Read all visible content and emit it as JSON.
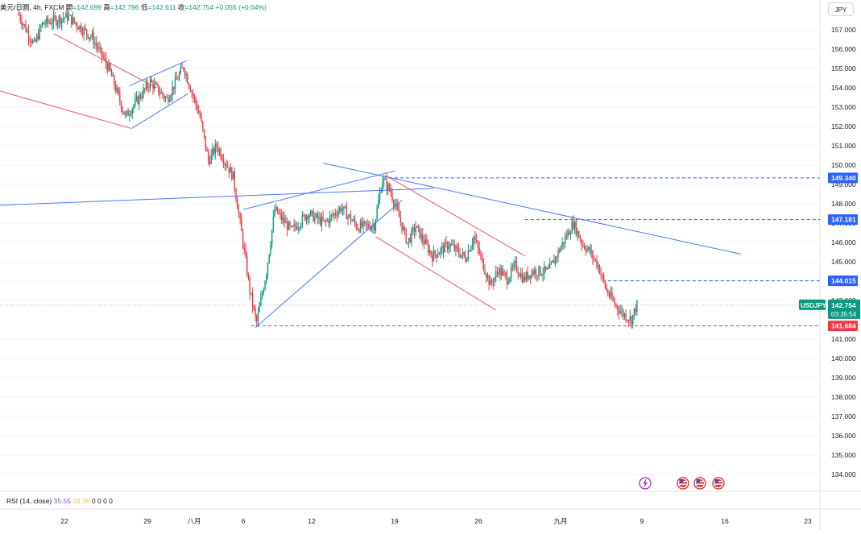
{
  "header": {
    "symbol": "美元/日圆",
    "interval": "4h",
    "source": "FXCM",
    "open_label": "開",
    "open": "=142.699",
    "high_label": "高",
    "high": "=142.796",
    "low_label": "低",
    "low": "=142.611",
    "close_label": "收",
    "close": "=142.754",
    "change": "+0.055 (+0.04%)"
  },
  "currency_button": "JPY",
  "rsi": {
    "label": "RSI (14, close)",
    "value1": "35.55",
    "value2": "29.36",
    "zeros": "0 0 0 0"
  },
  "colors": {
    "up": "#089981",
    "down": "#f23645",
    "trend_blue": "#2962ff",
    "trend_red": "#f23645",
    "current_price_bg": "#089981",
    "level_bg": "#2962ff",
    "low_bg": "#f23645",
    "event_icon": "#d93a47",
    "lightning_icon": "#9c27b0"
  },
  "icons": [
    "lightning-icon",
    "us-flag-icon",
    "us-flag-icon",
    "us-flag-icon"
  ],
  "chart_data": {
    "type": "candlestick",
    "y_ticks": [
      "157.000",
      "156.000",
      "155.000",
      "154.000",
      "153.000",
      "152.000",
      "151.000",
      "150.000",
      "149.000",
      "148.000",
      "147.000",
      "146.000",
      "145.000",
      "144.000",
      "143.000",
      "141.000",
      "140.000",
      "139.000",
      "138.000",
      "137.000",
      "136.000",
      "135.000",
      "134.000"
    ],
    "x_ticks": [
      "22",
      "29",
      "八月",
      "6",
      "12",
      "19",
      "26",
      "九月",
      "9",
      "16",
      "23"
    ],
    "ylim": [
      133.9,
      158.1
    ],
    "price_labels": {
      "levels": [
        "149.340",
        "147.181",
        "144.015"
      ],
      "low": "141.684",
      "current": {
        "symbol": "USDJPY",
        "price": "142.754",
        "countdown": "03:35:54"
      }
    },
    "anchors": [
      {
        "d": 0,
        "p": 157.9
      },
      {
        "d": 2,
        "p": 156.2
      },
      {
        "d": 3,
        "p": 157.3
      },
      {
        "d": 6,
        "p": 157.7
      },
      {
        "d": 9,
        "p": 156.6
      },
      {
        "d": 11,
        "p": 155.0
      },
      {
        "d": 13,
        "p": 152.5
      },
      {
        "d": 16,
        "p": 154.3
      },
      {
        "d": 18,
        "p": 153.4
      },
      {
        "d": 20,
        "p": 155.1
      },
      {
        "d": 22,
        "p": 152.5
      },
      {
        "d": 23,
        "p": 150.2
      },
      {
        "d": 24,
        "p": 151.0
      },
      {
        "d": 26,
        "p": 149.4
      },
      {
        "d": 27,
        "p": 146.5
      },
      {
        "d": 28,
        "p": 143.5
      },
      {
        "d": 28.8,
        "p": 141.8
      },
      {
        "d": 30,
        "p": 144.5
      },
      {
        "d": 31,
        "p": 147.7
      },
      {
        "d": 33,
        "p": 146.6
      },
      {
        "d": 35,
        "p": 147.5
      },
      {
        "d": 37,
        "p": 147.0
      },
      {
        "d": 39,
        "p": 147.8
      },
      {
        "d": 41,
        "p": 146.8
      },
      {
        "d": 43,
        "p": 146.9
      },
      {
        "d": 44,
        "p": 149.3
      },
      {
        "d": 45,
        "p": 148.6
      },
      {
        "d": 46,
        "p": 147.3
      },
      {
        "d": 47,
        "p": 146.0
      },
      {
        "d": 48,
        "p": 146.8
      },
      {
        "d": 50,
        "p": 145.3
      },
      {
        "d": 52,
        "p": 145.9
      },
      {
        "d": 54,
        "p": 145.2
      },
      {
        "d": 55,
        "p": 146.3
      },
      {
        "d": 56,
        "p": 145.0
      },
      {
        "d": 57,
        "p": 143.8
      },
      {
        "d": 58,
        "p": 144.6
      },
      {
        "d": 59,
        "p": 144.1
      },
      {
        "d": 60,
        "p": 144.8
      },
      {
        "d": 61,
        "p": 144.1
      },
      {
        "d": 62,
        "p": 144.5
      },
      {
        "d": 64,
        "p": 144.5
      },
      {
        "d": 66,
        "p": 146.2
      },
      {
        "d": 67,
        "p": 147.0
      },
      {
        "d": 68,
        "p": 146.0
      },
      {
        "d": 69,
        "p": 145.5
      },
      {
        "d": 70,
        "p": 144.8
      },
      {
        "d": 71,
        "p": 143.5
      },
      {
        "d": 72,
        "p": 142.8
      },
      {
        "d": 73,
        "p": 142.3
      },
      {
        "d": 74,
        "p": 142.0
      },
      {
        "d": 74.6,
        "p": 142.75
      }
    ],
    "trendlines": [
      {
        "color": "red",
        "from": [
          -20,
          156.0
        ],
        "to": [
          13.5,
          151.9
        ]
      },
      {
        "color": "red",
        "from": [
          4.2,
          156.8
        ],
        "to": [
          16.6,
          154.0
        ]
      },
      {
        "color": "blue",
        "from": [
          13.3,
          154.1
        ],
        "to": [
          20.2,
          155.4
        ]
      },
      {
        "color": "blue",
        "from": [
          13.6,
          151.9
        ],
        "to": [
          20.4,
          153.7
        ]
      },
      {
        "color": "blue",
        "from": [
          -22,
          147.6
        ],
        "to": [
          50,
          148.8
        ]
      },
      {
        "color": "blue",
        "from": [
          28.5,
          141.6
        ],
        "to": [
          46.2,
          148.2
        ]
      },
      {
        "color": "blue",
        "from": [
          27,
          147.7
        ],
        "to": [
          45.3,
          149.7
        ]
      },
      {
        "color": "red",
        "from": [
          44.5,
          149.4
        ],
        "to": [
          61,
          145.3
        ]
      },
      {
        "color": "red",
        "from": [
          43,
          146.3
        ],
        "to": [
          57.5,
          142.5
        ]
      },
      {
        "color": "blue",
        "from": [
          36.7,
          150.1
        ],
        "to": [
          87,
          145.4
        ]
      }
    ],
    "levels": [
      {
        "price": 149.34,
        "from": 44.6,
        "color": "blue",
        "dashed": true
      },
      {
        "price": 147.181,
        "from": 61.0,
        "color": "blue",
        "dashed": true
      },
      {
        "price": 144.015,
        "from": 71.0,
        "color": "blue",
        "dashed": true
      },
      {
        "price": 141.684,
        "from": 28.0,
        "color": "red",
        "dashed": true
      },
      {
        "price": 142.754,
        "from": -22,
        "color": "blue",
        "dashed": false
      }
    ]
  }
}
